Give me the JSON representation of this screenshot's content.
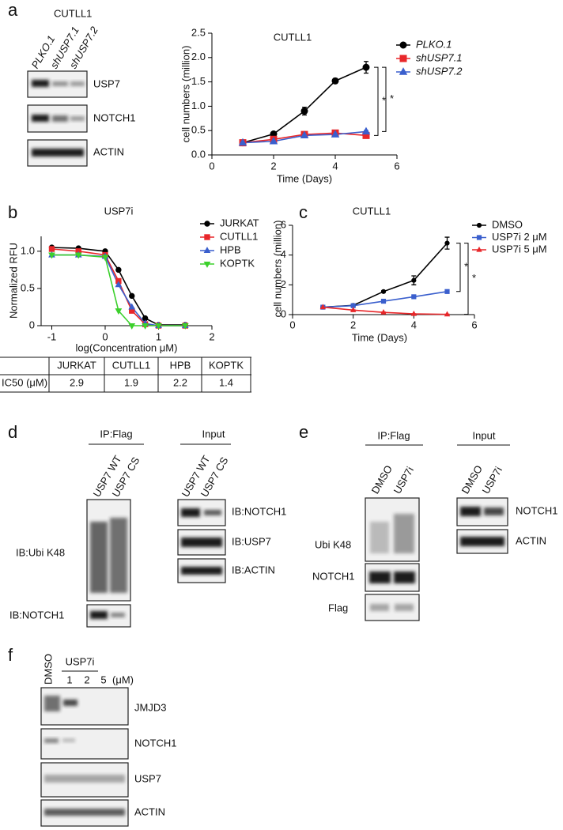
{
  "panel_labels": [
    "a",
    "b",
    "c",
    "d",
    "e",
    "f"
  ],
  "chart_data": [
    {
      "type": "line",
      "title": "CUTLL1",
      "xlabel": "Time (Days)",
      "ylabel": "cell numbers (million)",
      "x": [
        1,
        2,
        3,
        4,
        5
      ],
      "series": [
        {
          "name": "PLKO.1",
          "color": "#000000",
          "marker": "circle",
          "values": [
            0.25,
            0.43,
            0.9,
            1.52,
            1.8
          ],
          "errors": [
            0.02,
            0.02,
            0.08,
            0.05,
            0.12
          ]
        },
        {
          "name": "shUSP7.1",
          "color": "#e8272a",
          "marker": "square",
          "values": [
            0.25,
            0.32,
            0.42,
            0.45,
            0.4
          ],
          "errors": [
            0.02,
            0.02,
            0.03,
            0.04,
            0.03
          ]
        },
        {
          "name": "shUSP7.2",
          "color": "#3a5fcd",
          "marker": "triangle",
          "values": [
            0.25,
            0.28,
            0.4,
            0.42,
            0.48
          ],
          "errors": [
            0.02,
            0.02,
            0.03,
            0.03,
            0.02
          ]
        }
      ],
      "xlim": [
        0,
        6
      ],
      "xticks": [
        0,
        2,
        4,
        6
      ],
      "ylim": [
        0,
        2.5
      ],
      "yticks": [
        {
          "value": 0,
          "label": "0.0"
        },
        0.5,
        {
          "value": 1,
          "label": "1.0"
        },
        1.5,
        {
          "value": 2,
          "label": "2.0"
        },
        2.5
      ],
      "annotations": [
        "*",
        "*"
      ]
    },
    {
      "type": "line",
      "title": "USP7i",
      "xlabel": "log(Concentration μM)",
      "ylabel": "Normalized RFU",
      "x": [
        -1,
        -0.5,
        0,
        0.25,
        0.5,
        0.75,
        1,
        1.5
      ],
      "series": [
        {
          "name": "JURKAT",
          "color": "#000000",
          "marker": "circle",
          "values": [
            1.05,
            1.04,
            1.0,
            0.75,
            0.4,
            0.1,
            0.01,
            0.01
          ]
        },
        {
          "name": "CUTLL1",
          "color": "#e8272a",
          "marker": "square",
          "values": [
            1.03,
            1.0,
            0.95,
            0.6,
            0.2,
            0.02,
            0,
            0
          ]
        },
        {
          "name": "HPB",
          "color": "#3a5fcd",
          "marker": "triangle",
          "values": [
            0.95,
            0.95,
            0.93,
            0.55,
            0.25,
            0.03,
            0,
            0
          ]
        },
        {
          "name": "KOPTK",
          "color": "#3cd02c",
          "marker": "triangle-down",
          "values": [
            0.95,
            0.95,
            0.92,
            0.2,
            0,
            0,
            0,
            0
          ]
        }
      ],
      "xlim": [
        -1.2,
        2
      ],
      "xticks": [
        -1,
        0,
        1,
        2
      ],
      "ylim": [
        0,
        1.2
      ],
      "yticks": [
        0,
        0.5,
        {
          "value": 1,
          "label": "1.0"
        }
      ]
    },
    {
      "type": "line",
      "title": "CUTLL1",
      "xlabel": "Time (Days)",
      "ylabel": "cell numbers (million)",
      "x": [
        1,
        2,
        3,
        4,
        5.1
      ],
      "series": [
        {
          "name": "DMSO",
          "color": "#000000",
          "marker": "circle",
          "values": [
            0.5,
            0.62,
            1.55,
            2.3,
            4.8
          ],
          "errors": [
            0.02,
            0.05,
            0.05,
            0.3,
            0.4
          ]
        },
        {
          "name": "USP7i 2 μM",
          "color": "#3a5fcd",
          "marker": "square",
          "values": [
            0.5,
            0.6,
            0.9,
            1.2,
            1.55
          ],
          "errors": [
            0.02,
            0.03,
            0.03,
            0.05,
            0.05
          ]
        },
        {
          "name": "USP7i 5 μM",
          "color": "#e8272a",
          "marker": "triangle",
          "values": [
            0.5,
            0.3,
            0.15,
            0.05,
            0.02
          ],
          "errors": [
            0.02,
            0.02,
            0.02,
            0.01,
            0.01
          ]
        }
      ],
      "xlim": [
        0,
        6
      ],
      "xticks": [
        0,
        2,
        4,
        6
      ],
      "ylim": [
        0,
        6
      ],
      "yticks": [
        0,
        2,
        4,
        6
      ],
      "annotations": [
        "*",
        "*"
      ]
    }
  ],
  "blot_a": {
    "title": "CUTLL1",
    "lanes": [
      "PLKO.1",
      "shUSP7.1",
      "shUSP7.2"
    ],
    "rows": [
      "USP7",
      "NOTCH1",
      "ACTIN"
    ]
  },
  "table_b": {
    "header": [
      "JURKAT",
      "CUTLL1",
      "HPB",
      "KOPTK"
    ],
    "row_label": "IC50 (μM)",
    "values": [
      2.9,
      1.9,
      2.2,
      1.4
    ]
  },
  "blot_d": {
    "ip_title": "IP:Flag",
    "input_title": "Input",
    "lanes": [
      "USP7 WT",
      "USP7 CS"
    ],
    "ip_rows": [
      "IB:Ubi K48",
      "IB:NOTCH1"
    ],
    "input_rows": [
      "IB:NOTCH1",
      "IB:USP7",
      "IB:ACTIN"
    ]
  },
  "blot_e": {
    "ip_title": "IP:Flag",
    "input_title": "Input",
    "lanes": [
      "DMSO",
      "USP7i"
    ],
    "ip_rows": [
      "Ubi K48",
      "NOTCH1",
      "Flag"
    ],
    "input_rows": [
      "NOTCH1",
      "ACTIN"
    ]
  },
  "blot_f": {
    "lanes": [
      "DMSO",
      "1",
      "2",
      "5"
    ],
    "treatment": "USP7i",
    "unit": "(μM)",
    "rows": [
      "JMJD3",
      "NOTCH1",
      "USP7",
      "ACTIN"
    ]
  }
}
